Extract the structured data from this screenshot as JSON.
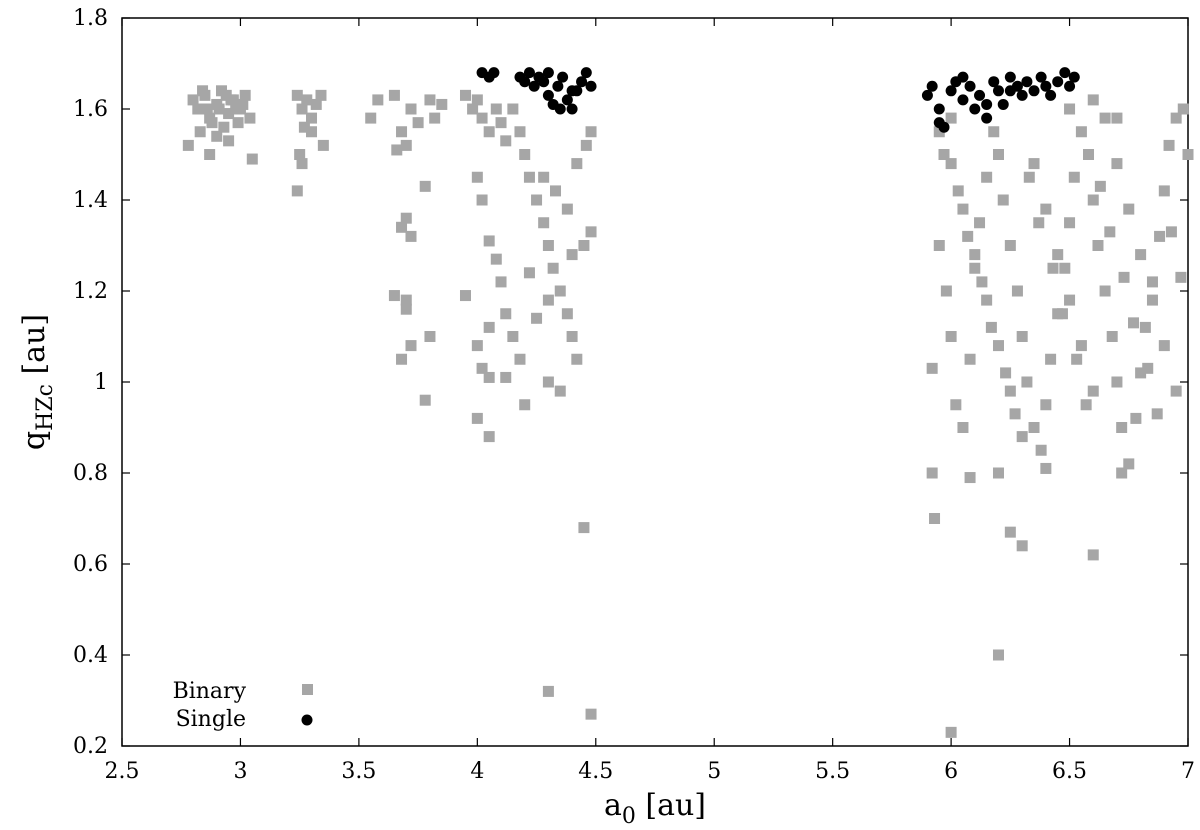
{
  "chart_data": {
    "type": "scatter",
    "xlim": [
      2.5,
      7
    ],
    "ylim": [
      0.2,
      1.8
    ],
    "x_ticks": [
      "2.5",
      "3",
      "3.5",
      "4",
      "4.5",
      "5",
      "5.5",
      "6",
      "6.5",
      "7"
    ],
    "y_ticks": [
      "0.2",
      "0.4",
      "0.6",
      "0.8",
      "1",
      "1.2",
      "1.4",
      "1.6",
      "1.8"
    ],
    "xlabel": {
      "main": "a",
      "sub": "0",
      "unit": " [au]"
    },
    "ylabel": {
      "main": "q",
      "sub": "HZc",
      "unit": " [au]"
    },
    "legend_position": "bottom-left",
    "grid": false,
    "colors": {
      "binary": "#a6a6a6",
      "single": "#000000"
    },
    "series": [
      {
        "name": "Binary",
        "marker": "square",
        "points": [
          [
            2.8,
            1.62
          ],
          [
            2.82,
            1.6
          ],
          [
            2.85,
            1.63
          ],
          [
            2.87,
            1.58
          ],
          [
            2.9,
            1.61
          ],
          [
            2.92,
            1.64
          ],
          [
            2.95,
            1.59
          ],
          [
            2.97,
            1.62
          ],
          [
            3.0,
            1.6
          ],
          [
            3.02,
            1.63
          ],
          [
            3.04,
            1.58
          ],
          [
            2.83,
            1.55
          ],
          [
            2.88,
            1.57
          ],
          [
            2.93,
            1.56
          ],
          [
            2.98,
            1.6
          ],
          [
            2.86,
            1.6
          ],
          [
            2.91,
            1.6
          ],
          [
            2.96,
            1.62
          ],
          [
            3.01,
            1.61
          ],
          [
            2.84,
            1.64
          ],
          [
            2.94,
            1.63
          ],
          [
            2.99,
            1.57
          ],
          [
            2.78,
            1.52
          ],
          [
            2.87,
            1.5
          ],
          [
            2.9,
            1.54
          ],
          [
            2.95,
            1.53
          ],
          [
            3.05,
            1.49
          ],
          [
            3.24,
            1.63
          ],
          [
            3.26,
            1.6
          ],
          [
            3.28,
            1.62
          ],
          [
            3.3,
            1.58
          ],
          [
            3.32,
            1.61
          ],
          [
            3.34,
            1.63
          ],
          [
            3.27,
            1.56
          ],
          [
            3.3,
            1.55
          ],
          [
            3.25,
            1.5
          ],
          [
            3.26,
            1.48
          ],
          [
            3.24,
            1.42
          ],
          [
            3.35,
            1.52
          ],
          [
            3.55,
            1.58
          ],
          [
            3.58,
            1.62
          ],
          [
            3.65,
            1.63
          ],
          [
            3.68,
            1.55
          ],
          [
            3.72,
            1.6
          ],
          [
            3.75,
            1.57
          ],
          [
            3.8,
            1.62
          ],
          [
            3.82,
            1.58
          ],
          [
            3.85,
            1.61
          ],
          [
            3.7,
            1.52
          ],
          [
            3.66,
            1.51
          ],
          [
            3.78,
            1.43
          ],
          [
            3.68,
            1.34
          ],
          [
            3.7,
            1.36
          ],
          [
            3.72,
            1.32
          ],
          [
            3.65,
            1.19
          ],
          [
            3.7,
            1.18
          ],
          [
            3.7,
            1.16
          ],
          [
            3.72,
            1.08
          ],
          [
            3.68,
            1.05
          ],
          [
            3.8,
            1.1
          ],
          [
            3.78,
            0.96
          ],
          [
            3.95,
            1.63
          ],
          [
            3.98,
            1.6
          ],
          [
            4.0,
            1.62
          ],
          [
            4.02,
            1.58
          ],
          [
            4.05,
            1.55
          ],
          [
            4.08,
            1.6
          ],
          [
            4.1,
            1.57
          ],
          [
            4.12,
            1.53
          ],
          [
            4.15,
            1.6
          ],
          [
            4.18,
            1.55
          ],
          [
            4.2,
            1.5
          ],
          [
            4.22,
            1.45
          ],
          [
            4.25,
            1.4
          ],
          [
            4.28,
            1.35
          ],
          [
            4.3,
            1.3
          ],
          [
            4.32,
            1.25
          ],
          [
            4.35,
            1.2
          ],
          [
            4.38,
            1.15
          ],
          [
            4.4,
            1.1
          ],
          [
            4.42,
            1.05
          ],
          [
            4.45,
            1.3
          ],
          [
            4.48,
            1.33
          ],
          [
            4.0,
            1.45
          ],
          [
            4.02,
            1.4
          ],
          [
            4.05,
            1.31
          ],
          [
            4.08,
            1.27
          ],
          [
            4.1,
            1.22
          ],
          [
            4.12,
            1.15
          ],
          [
            4.15,
            1.1
          ],
          [
            4.18,
            1.05
          ],
          [
            4.05,
            1.12
          ],
          [
            4.0,
            1.08
          ],
          [
            4.02,
            1.03
          ],
          [
            4.05,
            1.01
          ],
          [
            4.12,
            1.01
          ],
          [
            4.2,
            0.95
          ],
          [
            4.0,
            0.92
          ],
          [
            4.05,
            0.88
          ],
          [
            4.3,
            1.0
          ],
          [
            4.35,
            0.98
          ],
          [
            4.22,
            1.24
          ],
          [
            4.28,
            1.45
          ],
          [
            4.33,
            1.42
          ],
          [
            4.38,
            1.38
          ],
          [
            4.42,
            1.48
          ],
          [
            4.46,
            1.52
          ],
          [
            4.48,
            1.55
          ],
          [
            4.4,
            1.28
          ],
          [
            4.3,
            1.18
          ],
          [
            4.25,
            1.14
          ],
          [
            4.45,
            0.68
          ],
          [
            3.95,
            1.19
          ],
          [
            4.3,
            0.32
          ],
          [
            4.48,
            0.27
          ],
          [
            5.92,
            0.8
          ],
          [
            5.93,
            0.7
          ],
          [
            5.92,
            1.03
          ],
          [
            5.95,
            1.3
          ],
          [
            5.98,
            1.2
          ],
          [
            6.0,
            1.1
          ],
          [
            6.02,
            0.95
          ],
          [
            6.05,
            0.9
          ],
          [
            6.08,
            1.05
          ],
          [
            6.1,
            1.25
          ],
          [
            6.12,
            1.35
          ],
          [
            6.15,
            1.45
          ],
          [
            6.18,
            1.55
          ],
          [
            6.2,
            1.5
          ],
          [
            6.22,
            1.4
          ],
          [
            6.25,
            1.3
          ],
          [
            6.28,
            1.2
          ],
          [
            6.3,
            1.1
          ],
          [
            6.32,
            1.0
          ],
          [
            6.35,
            0.9
          ],
          [
            6.38,
            0.85
          ],
          [
            6.4,
            0.95
          ],
          [
            6.42,
            1.05
          ],
          [
            6.45,
            1.15
          ],
          [
            6.48,
            1.25
          ],
          [
            6.5,
            1.35
          ],
          [
            6.52,
            1.45
          ],
          [
            6.55,
            1.55
          ],
          [
            6.58,
            1.5
          ],
          [
            6.6,
            1.4
          ],
          [
            6.62,
            1.3
          ],
          [
            6.65,
            1.2
          ],
          [
            6.68,
            1.1
          ],
          [
            6.7,
            1.0
          ],
          [
            6.72,
            0.9
          ],
          [
            6.75,
            0.82
          ],
          [
            6.78,
            0.92
          ],
          [
            6.8,
            1.02
          ],
          [
            6.82,
            1.12
          ],
          [
            6.85,
            1.22
          ],
          [
            6.88,
            1.32
          ],
          [
            6.9,
            1.42
          ],
          [
            6.92,
            1.52
          ],
          [
            6.95,
            1.58
          ],
          [
            6.98,
            1.6
          ],
          [
            7.0,
            1.5
          ],
          [
            6.0,
            1.48
          ],
          [
            6.05,
            1.38
          ],
          [
            6.1,
            1.28
          ],
          [
            6.15,
            1.18
          ],
          [
            6.2,
            1.08
          ],
          [
            6.25,
            0.98
          ],
          [
            6.3,
            0.88
          ],
          [
            6.35,
            1.48
          ],
          [
            6.4,
            1.38
          ],
          [
            6.45,
            1.28
          ],
          [
            6.5,
            1.18
          ],
          [
            6.55,
            1.08
          ],
          [
            6.6,
            0.98
          ],
          [
            6.65,
            1.58
          ],
          [
            6.7,
            1.48
          ],
          [
            6.75,
            1.38
          ],
          [
            6.8,
            1.28
          ],
          [
            6.85,
            1.18
          ],
          [
            6.9,
            1.08
          ],
          [
            6.95,
            0.98
          ],
          [
            6.0,
            1.58
          ],
          [
            5.95,
            1.55
          ],
          [
            5.97,
            1.5
          ],
          [
            6.03,
            1.42
          ],
          [
            6.07,
            1.32
          ],
          [
            6.13,
            1.22
          ],
          [
            6.17,
            1.12
          ],
          [
            6.23,
            1.02
          ],
          [
            6.27,
            0.93
          ],
          [
            6.33,
            1.45
          ],
          [
            6.37,
            1.35
          ],
          [
            6.43,
            1.25
          ],
          [
            6.47,
            1.15
          ],
          [
            6.53,
            1.05
          ],
          [
            6.57,
            0.95
          ],
          [
            6.63,
            1.43
          ],
          [
            6.67,
            1.33
          ],
          [
            6.73,
            1.23
          ],
          [
            6.77,
            1.13
          ],
          [
            6.83,
            1.03
          ],
          [
            6.87,
            0.93
          ],
          [
            6.93,
            1.33
          ],
          [
            6.97,
            1.23
          ],
          [
            6.2,
            0.8
          ],
          [
            6.25,
            0.67
          ],
          [
            6.3,
            0.64
          ],
          [
            6.6,
            0.62
          ],
          [
            6.2,
            0.4
          ],
          [
            6.0,
            0.23
          ],
          [
            6.08,
            0.79
          ],
          [
            6.4,
            0.81
          ],
          [
            6.72,
            0.8
          ],
          [
            6.5,
            1.6
          ],
          [
            6.6,
            1.62
          ],
          [
            6.7,
            1.58
          ]
        ]
      },
      {
        "name": "Single",
        "marker": "circle",
        "points": [
          [
            4.02,
            1.68
          ],
          [
            4.05,
            1.67
          ],
          [
            4.07,
            1.68
          ],
          [
            4.18,
            1.67
          ],
          [
            4.2,
            1.66
          ],
          [
            4.22,
            1.68
          ],
          [
            4.24,
            1.65
          ],
          [
            4.26,
            1.67
          ],
          [
            4.28,
            1.66
          ],
          [
            4.3,
            1.63
          ],
          [
            4.32,
            1.61
          ],
          [
            4.34,
            1.65
          ],
          [
            4.36,
            1.67
          ],
          [
            4.38,
            1.62
          ],
          [
            4.4,
            1.6
          ],
          [
            4.42,
            1.64
          ],
          [
            4.44,
            1.66
          ],
          [
            4.46,
            1.68
          ],
          [
            4.48,
            1.65
          ],
          [
            4.3,
            1.68
          ],
          [
            4.35,
            1.6
          ],
          [
            4.4,
            1.64
          ],
          [
            5.9,
            1.63
          ],
          [
            5.92,
            1.65
          ],
          [
            5.95,
            1.6
          ],
          [
            5.97,
            1.56
          ],
          [
            6.0,
            1.64
          ],
          [
            6.02,
            1.66
          ],
          [
            6.05,
            1.62
          ],
          [
            6.08,
            1.65
          ],
          [
            6.1,
            1.6
          ],
          [
            6.12,
            1.63
          ],
          [
            6.15,
            1.58
          ],
          [
            6.18,
            1.66
          ],
          [
            6.2,
            1.64
          ],
          [
            6.22,
            1.61
          ],
          [
            6.25,
            1.67
          ],
          [
            6.28,
            1.65
          ],
          [
            6.3,
            1.63
          ],
          [
            6.32,
            1.66
          ],
          [
            6.35,
            1.64
          ],
          [
            6.38,
            1.67
          ],
          [
            6.4,
            1.65
          ],
          [
            6.42,
            1.63
          ],
          [
            6.45,
            1.66
          ],
          [
            6.48,
            1.68
          ],
          [
            6.5,
            1.65
          ],
          [
            6.52,
            1.67
          ],
          [
            5.95,
            1.57
          ],
          [
            6.05,
            1.67
          ],
          [
            6.15,
            1.61
          ],
          [
            6.25,
            1.64
          ]
        ]
      }
    ]
  }
}
